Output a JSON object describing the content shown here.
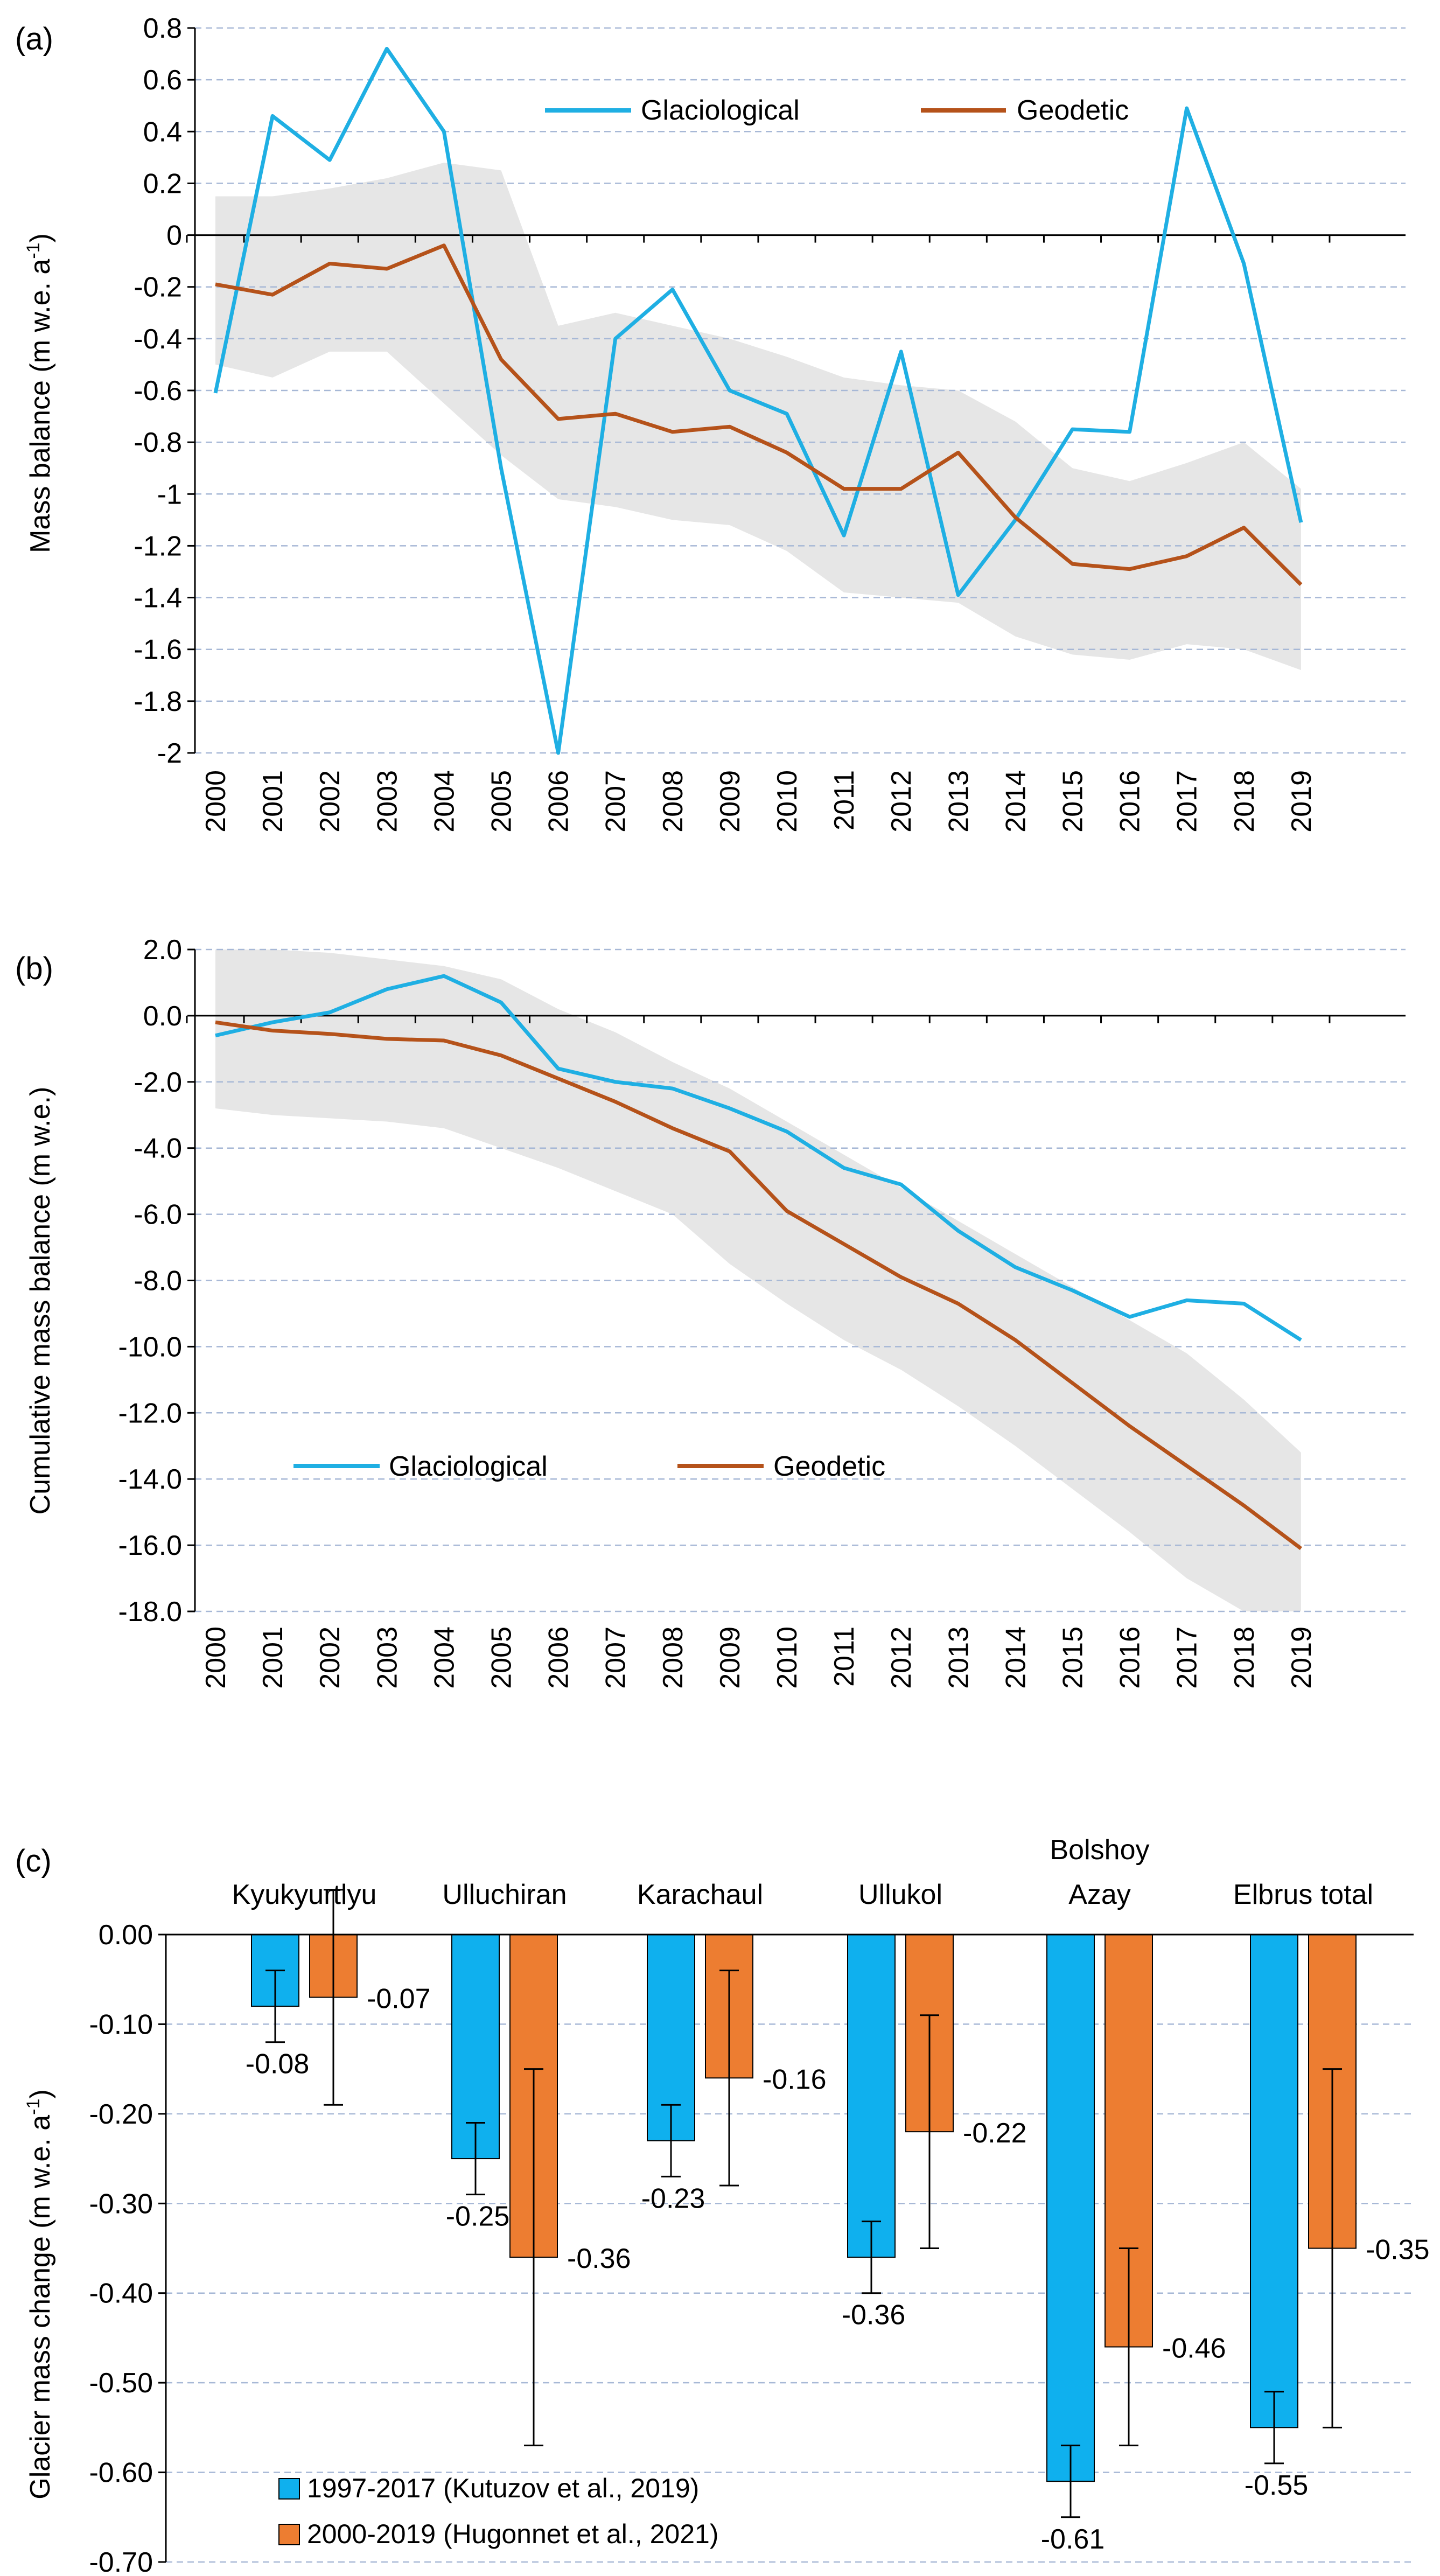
{
  "colors": {
    "glaciological": "#1FAFE3",
    "geodetic": "#B5521A",
    "band": "#E6E6E6",
    "grid": "#A7B8D6",
    "bar_blue": "#0FB0EE",
    "bar_orange": "#ED7D31"
  },
  "years": [
    "2000",
    "2001",
    "2002",
    "2003",
    "2004",
    "2005",
    "2006",
    "2007",
    "2008",
    "2009",
    "2010",
    "2011",
    "2012",
    "2013",
    "2014",
    "2015",
    "2016",
    "2017",
    "2018",
    "2019"
  ],
  "chart_data": [
    {
      "type": "line",
      "panel_label": "(a)",
      "ylabel": "Mass balance (m w.e. a",
      "ylabel_sup": "-1",
      "ylabel_end": ")",
      "ylim": [
        -2,
        0.8
      ],
      "yticks": [
        "0.8",
        "0.6",
        "0.4",
        "0.2",
        "0",
        "-0.2",
        "-0.4",
        "-0.6",
        "-0.8",
        "-1",
        "-1.2",
        "-1.4",
        "-1.6",
        "-1.8",
        "-2"
      ],
      "ytick_values": [
        0.8,
        0.6,
        0.4,
        0.2,
        0,
        -0.2,
        -0.4,
        -0.6,
        -0.8,
        -1,
        -1.2,
        -1.4,
        -1.6,
        -1.8,
        -2
      ],
      "x": [
        2000,
        2001,
        2002,
        2003,
        2004,
        2005,
        2006,
        2007,
        2008,
        2009,
        2010,
        2011,
        2012,
        2013,
        2014,
        2015,
        2016,
        2017,
        2018,
        2019
      ],
      "series": [
        {
          "name": "Glaciological",
          "values": [
            -0.61,
            0.46,
            0.29,
            0.72,
            0.4,
            -0.9,
            -2.0,
            -0.4,
            -0.21,
            -0.6,
            -0.69,
            -1.16,
            -0.45,
            -1.39,
            -1.1,
            -0.75,
            -0.76,
            0.49,
            -0.11,
            -1.11
          ]
        },
        {
          "name": "Geodetic",
          "values": [
            -0.19,
            -0.23,
            -0.11,
            -0.13,
            -0.04,
            -0.48,
            -0.71,
            -0.69,
            -0.76,
            -0.74,
            -0.84,
            -0.98,
            -0.98,
            -0.84,
            -1.09,
            -1.27,
            -1.29,
            -1.24,
            -1.13,
            -1.35
          ]
        }
      ],
      "band": {
        "upper": [
          0.15,
          0.15,
          0.18,
          0.22,
          0.28,
          0.25,
          -0.35,
          -0.3,
          -0.35,
          -0.4,
          -0.47,
          -0.55,
          -0.58,
          -0.6,
          -0.72,
          -0.9,
          -0.95,
          -0.88,
          -0.8,
          -0.98
        ],
        "lower": [
          -0.5,
          -0.55,
          -0.45,
          -0.45,
          -0.65,
          -0.85,
          -1.02,
          -1.05,
          -1.1,
          -1.12,
          -1.22,
          -1.38,
          -1.4,
          -1.42,
          -1.55,
          -1.62,
          -1.64,
          -1.58,
          -1.6,
          -1.68
        ]
      },
      "legend": {
        "glaciological": "Glaciological",
        "geodetic": "Geodetic"
      }
    },
    {
      "type": "line",
      "panel_label": "(b)",
      "ylabel": "Cumulative mass balance (m w.e.)",
      "ylim": [
        -18,
        2
      ],
      "yticks": [
        "2.0",
        "0.0",
        "-2.0",
        "-4.0",
        "-6.0",
        "-8.0",
        "-10.0",
        "-12.0",
        "-14.0",
        "-16.0",
        "-18.0"
      ],
      "ytick_values": [
        2,
        0,
        -2,
        -4,
        -6,
        -8,
        -10,
        -12,
        -14,
        -16,
        -18
      ],
      "x": [
        2000,
        2001,
        2002,
        2003,
        2004,
        2005,
        2006,
        2007,
        2008,
        2009,
        2010,
        2011,
        2012,
        2013,
        2014,
        2015,
        2016,
        2017,
        2018,
        2019
      ],
      "series": [
        {
          "name": "Glaciological",
          "values": [
            -0.6,
            -0.2,
            0.1,
            0.8,
            1.2,
            0.4,
            -1.6,
            -2.0,
            -2.2,
            -2.8,
            -3.5,
            -4.6,
            -5.1,
            -6.5,
            -7.6,
            -8.3,
            -9.1,
            -8.6,
            -8.7,
            -9.8
          ]
        },
        {
          "name": "Geodetic",
          "values": [
            -0.2,
            -0.45,
            -0.55,
            -0.7,
            -0.75,
            -1.2,
            -1.9,
            -2.6,
            -3.4,
            -4.1,
            -5.9,
            -6.9,
            -7.9,
            -8.7,
            -9.8,
            -11.1,
            -12.4,
            -13.6,
            -14.8,
            -16.1
          ]
        }
      ],
      "band": {
        "upper": [
          2.0,
          2.0,
          1.9,
          1.7,
          1.5,
          1.1,
          0.2,
          -0.5,
          -1.4,
          -2.2,
          -3.2,
          -4.2,
          -5.2,
          -6.2,
          -7.2,
          -8.2,
          -9.2,
          -10.2,
          -11.6,
          -13.2
        ],
        "lower": [
          -2.8,
          -3.0,
          -3.1,
          -3.2,
          -3.4,
          -4.0,
          -4.6,
          -5.3,
          -6.0,
          -7.5,
          -8.7,
          -9.8,
          -10.7,
          -11.8,
          -13.0,
          -14.3,
          -15.6,
          -17.0,
          -18.0,
          -18.0
        ]
      },
      "legend": {
        "glaciological": "Glaciological",
        "geodetic": "Geodetic"
      }
    },
    {
      "type": "bar",
      "panel_label": "c)",
      "panel_label_open": "(",
      "ylabel": "Glacier mass change (m w.e. a",
      "ylabel_sup": "-1",
      "ylabel_end": ")",
      "ylim": [
        -0.7,
        0
      ],
      "yticks": [
        "0.00",
        "-0.10",
        "-0.20",
        "-0.30",
        "-0.40",
        "-0.50",
        "-0.60",
        "-0.70"
      ],
      "ytick_values": [
        0,
        -0.1,
        -0.2,
        -0.3,
        -0.4,
        -0.5,
        -0.6,
        -0.7
      ],
      "categories": [
        {
          "line1": "",
          "line2": "Kyukyurtlyu"
        },
        {
          "line1": "",
          "line2": "Ulluchiran"
        },
        {
          "line1": "",
          "line2": "Karachaul"
        },
        {
          "line1": "",
          "line2": "Ullukol"
        },
        {
          "line1": "Bolshoy",
          "line2": "Azay"
        },
        {
          "line1": "",
          "line2": "Elbrus total"
        }
      ],
      "series": [
        {
          "name": "1997-2017 (Kutuzov et al., 2019)",
          "values": [
            -0.08,
            -0.25,
            -0.23,
            -0.36,
            -0.61,
            -0.55
          ],
          "error": [
            0.04,
            0.04,
            0.04,
            0.04,
            0.04,
            0.04
          ],
          "labels": [
            "-0.08",
            "-0.25",
            "-0.23",
            "-0.36",
            "-0.61",
            "-0.55"
          ]
        },
        {
          "name": "2000-2019 (Hugonnet et al., 2021)",
          "values": [
            -0.07,
            -0.36,
            -0.16,
            -0.22,
            -0.46,
            -0.35
          ],
          "error": [
            0.12,
            0.21,
            0.12,
            0.13,
            0.11,
            0.2
          ],
          "labels": [
            "-0.07",
            "-0.36",
            "-0.16",
            "-0.22",
            "-0.46",
            "-0.35"
          ]
        }
      ]
    }
  ]
}
